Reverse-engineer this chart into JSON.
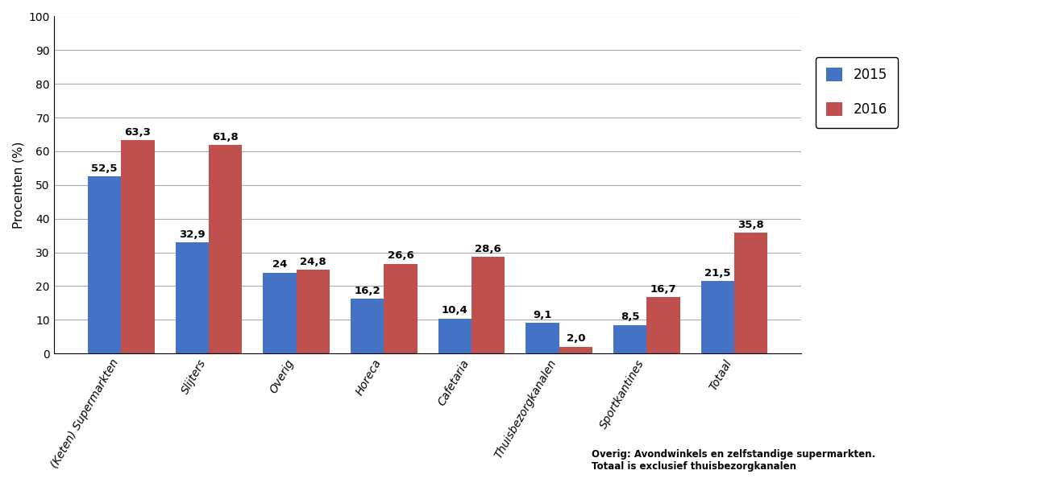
{
  "categories": [
    "(Keten) Supermarkten",
    "Slijters",
    "Overig",
    "Horeca",
    "Cafetaria",
    "Thuisbezorgkanalen",
    "Sportkantines",
    "Totaal"
  ],
  "values_2015": [
    52.5,
    32.9,
    24.0,
    16.2,
    10.4,
    9.1,
    8.5,
    21.5
  ],
  "values_2016": [
    63.3,
    61.8,
    24.8,
    26.6,
    28.6,
    2.0,
    16.7,
    35.8
  ],
  "labels_2015": [
    "52,5",
    "32,9",
    "24",
    "16,2",
    "10,4",
    "9,1",
    "8,5",
    "21,5"
  ],
  "labels_2016": [
    "63,3",
    "61,8",
    "24,8",
    "26,6",
    "28,6",
    "2,0",
    "16,7",
    "35,8"
  ],
  "color_2015": "#4472C4",
  "color_2016": "#C0504D",
  "ylabel": "Procenten (%)",
  "ylim": [
    0,
    100
  ],
  "yticks": [
    0,
    10,
    20,
    30,
    40,
    50,
    60,
    70,
    80,
    90,
    100
  ],
  "legend_labels": [
    "2015",
    "2016"
  ],
  "footnote_line1": "Overig: Avondwinkels en zelfstandige supermarkten.",
  "footnote_line2": "Totaal is exclusief thuisbezorgkanalen",
  "bar_width": 0.38,
  "label_fontsize": 9.5,
  "tick_fontsize": 10,
  "ylabel_fontsize": 11,
  "legend_fontsize": 12
}
